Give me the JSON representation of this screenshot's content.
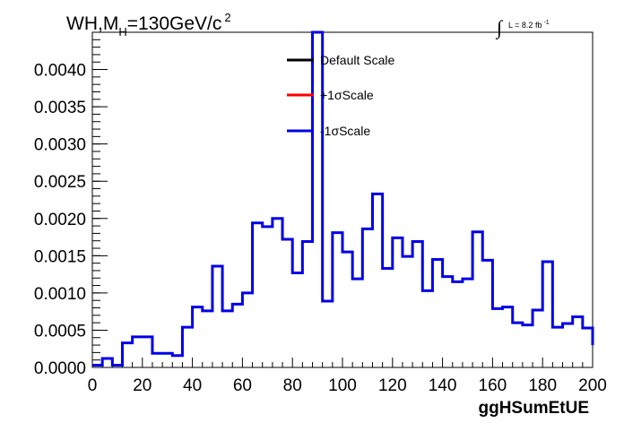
{
  "chart_data": {
    "type": "line",
    "title": {
      "prefix": "WH,M",
      "subscript": "H",
      "main": "=130GeV/c",
      "superscript": "2"
    },
    "lumi": {
      "integral": "∫",
      "text": "L = 8.2 fb",
      "superscript": "-1"
    },
    "xlabel": "ggHSumEtUE",
    "ylabel": "",
    "xlim": [
      0,
      200
    ],
    "ylim": [
      0,
      0.0045
    ],
    "xticks": [
      0,
      20,
      40,
      60,
      80,
      100,
      120,
      140,
      160,
      180,
      200
    ],
    "xtick_labels": [
      "0",
      "20",
      "40",
      "60",
      "80",
      "100",
      "120",
      "140",
      "160",
      "180",
      "200"
    ],
    "yticks": [
      0,
      0.0005,
      0.001,
      0.0015,
      0.002,
      0.0025,
      0.003,
      0.0035,
      0.004
    ],
    "ytick_labels": [
      "0.0000",
      "0.0005",
      "0.0010",
      "0.0015",
      "0.0020",
      "0.0025",
      "0.0030",
      "0.0035",
      "0.0040"
    ],
    "legend_position": "top-center",
    "legend": [
      {
        "label": "Default Scale",
        "color": "#000000"
      },
      {
        "label": "+1σScale",
        "color": "#ff0000"
      },
      {
        "label": "-1σScale",
        "color": "#0000e6"
      }
    ],
    "bin_edges": [
      0,
      4,
      8,
      12,
      16,
      24,
      32,
      36,
      40,
      44,
      48,
      52,
      56,
      60,
      64,
      68,
      72,
      76,
      80,
      84,
      88,
      92,
      96,
      100,
      104,
      108,
      112,
      116,
      120,
      124,
      128,
      132,
      136,
      140,
      144,
      148,
      152,
      156,
      160,
      164,
      168,
      172,
      176,
      180,
      184,
      188,
      192,
      196,
      200
    ],
    "series": [
      {
        "name": "-1σScale",
        "color": "#0000e6",
        "values": [
          3e-05,
          0.00012,
          3e-05,
          0.00033,
          0.00041,
          0.00019,
          0.00016,
          0.00054,
          0.00081,
          0.00076,
          0.00136,
          0.00076,
          0.00085,
          0.001,
          0.00194,
          0.00189,
          0.002,
          0.00172,
          0.00127,
          0.00169,
          0.0045,
          0.00089,
          0.00181,
          0.00155,
          0.00119,
          0.00186,
          0.00233,
          0.00133,
          0.00174,
          0.00149,
          0.00169,
          0.00103,
          0.00145,
          0.00122,
          0.00115,
          0.00119,
          0.00182,
          0.00144,
          0.00079,
          0.00081,
          0.0006,
          0.00057,
          0.00077,
          0.00142,
          0.00054,
          0.00059,
          0.00068,
          0.00053,
          0.0003
        ]
      }
    ]
  }
}
